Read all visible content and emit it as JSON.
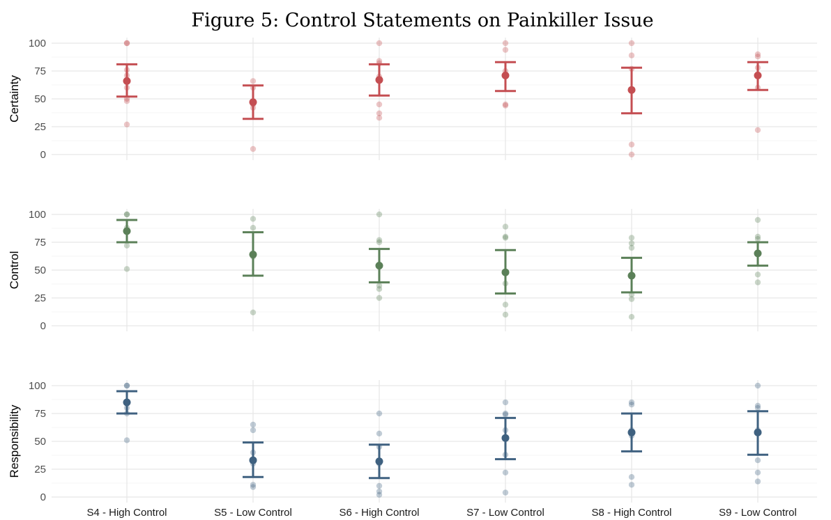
{
  "chart_data": {
    "type": "scatter",
    "title": "Figure 5: Control Statements on Painkiller Issue",
    "categories": [
      "S4 - High Control",
      "S5 - Low Control",
      "S6 - High Control",
      "S7 - Low Control",
      "S8 - High Control",
      "S9 - Low Control"
    ],
    "ylim": [
      0,
      100
    ],
    "yticks": [
      0,
      25,
      50,
      75,
      100
    ],
    "grid": true,
    "panels": [
      {
        "ylabel": "Certainty",
        "color": "#c44e52",
        "point_color": "#e3a3a5",
        "means": [
          66,
          47,
          67,
          71,
          58,
          71
        ],
        "ci_low": [
          52,
          32,
          53,
          57,
          37,
          58
        ],
        "ci_high": [
          81,
          62,
          81,
          83,
          78,
          83
        ],
        "raw_points": [
          [
            100,
            100,
            76,
            71,
            60,
            50,
            48,
            27
          ],
          [
            66,
            60,
            45,
            42,
            5
          ],
          [
            100,
            84,
            82,
            70,
            45,
            37,
            33
          ],
          [
            100,
            94,
            75,
            70,
            45,
            44
          ],
          [
            100,
            89,
            77,
            57,
            9,
            0
          ],
          [
            90,
            88,
            78,
            60,
            22
          ]
        ]
      },
      {
        "ylabel": "Control",
        "color": "#5b8058",
        "point_color": "#b4c7b2",
        "means": [
          85,
          64,
          54,
          48,
          45,
          65
        ],
        "ci_low": [
          75,
          45,
          39,
          29,
          30,
          54
        ],
        "ci_high": [
          95,
          84,
          69,
          68,
          61,
          75
        ],
        "raw_points": [
          [
            100,
            100,
            88,
            72,
            51
          ],
          [
            96,
            88,
            62,
            12
          ],
          [
            100,
            77,
            75,
            55,
            36,
            33,
            25
          ],
          [
            89,
            80,
            79,
            38,
            19,
            10
          ],
          [
            79,
            74,
            70,
            28,
            24,
            8
          ],
          [
            95,
            80,
            78,
            46,
            39
          ]
        ]
      },
      {
        "ylabel": "Responsibility",
        "color": "#3f6180",
        "point_color": "#a6b8c8",
        "means": [
          85,
          33,
          32,
          53,
          58,
          58
        ],
        "ci_low": [
          75,
          18,
          17,
          34,
          41,
          38
        ],
        "ci_high": [
          95,
          49,
          47,
          71,
          75,
          77
        ],
        "raw_points": [
          [
            100,
            100,
            80,
            75,
            51
          ],
          [
            65,
            60,
            40,
            30,
            11,
            9
          ],
          [
            75,
            57,
            45,
            30,
            10,
            5,
            2
          ],
          [
            85,
            75,
            74,
            60,
            38,
            22,
            4
          ],
          [
            85,
            83,
            60,
            55,
            18,
            11
          ],
          [
            100,
            82,
            80,
            60,
            33,
            22,
            14
          ]
        ]
      }
    ]
  }
}
